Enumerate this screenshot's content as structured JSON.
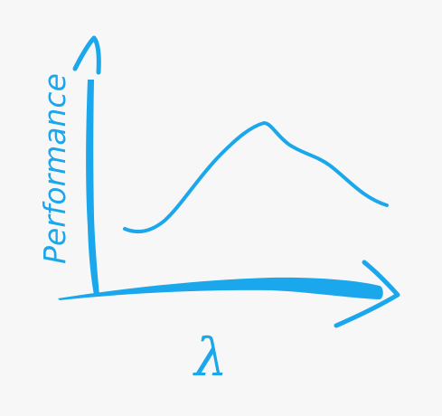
{
  "diagram": {
    "y_axis_label": "Performance",
    "x_axis_label": "λ",
    "ink_color": "#1aa7ec",
    "background_color": "#f7f7f7"
  }
}
